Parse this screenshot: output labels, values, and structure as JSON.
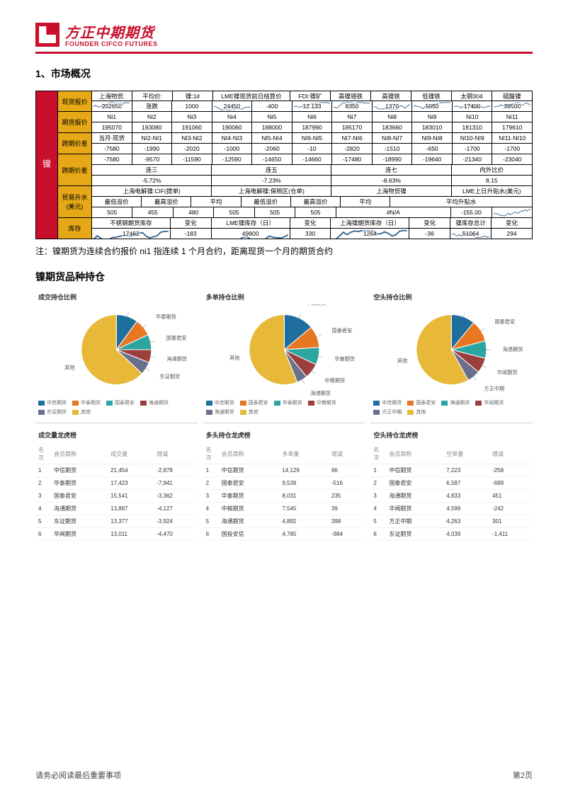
{
  "logo": {
    "cn": "方正中期期货",
    "en": "FOUNDER CIFCO FUTURES",
    "color": "#c8102e"
  },
  "section_title": "1、市场概况",
  "note": "注：镍期货为连续合约报价 ni1 指连续 1 个月合约，距离现货一个月的期货合约",
  "subtitle": "镍期货品种持仓",
  "big_table": {
    "left_label": "镍",
    "left_bg": "#c8102e",
    "mid_bg": "#e6a817",
    "groups": [
      {
        "mid": "现货报价",
        "rows": 2,
        "data": [
          [
            {
              "v": "上海物贸:",
              "span": 1
            },
            {
              "v": "平均价:",
              "span": 1
            },
            {
              "v": "镍:1#",
              "span": 1
            },
            {
              "v": "LME镍现货前日结算价",
              "span": 2
            },
            {
              "v": "FDI:镍矿",
              "span": 1
            },
            {
              "v": "高镍铬铁",
              "span": 1
            },
            {
              "v": "高镍铁",
              "span": 1
            },
            {
              "v": "低镍铁",
              "span": 1
            },
            {
              "v": "太钢304",
              "span": 1
            },
            {
              "v": "硫酸镍",
              "span": 1
            }
          ],
          [
            {
              "v": "202650",
              "spark": 1
            },
            {
              "v": "涨跌",
              "spark": 0
            },
            {
              "v": "1000",
              "spark": 0
            },
            {
              "v": "24450",
              "spark": 1
            },
            {
              "v": "-400",
              "spark": 0
            },
            {
              "v": "12.133",
              "spark": 1
            },
            {
              "v": "8350",
              "spark": 1
            },
            {
              "v": "1370",
              "spark": 1
            },
            {
              "v": "5050",
              "spark": 1
            },
            {
              "v": "17400",
              "spark": 1
            },
            {
              "v": "39500",
              "spark": 1
            }
          ]
        ]
      },
      {
        "mid": "期货报价",
        "rows": 2,
        "data": [
          [
            {
              "v": "Ni1"
            },
            {
              "v": "Ni2"
            },
            {
              "v": "Ni3"
            },
            {
              "v": "Ni4"
            },
            {
              "v": "Ni5"
            },
            {
              "v": "Ni6"
            },
            {
              "v": "Ni7"
            },
            {
              "v": "Ni8"
            },
            {
              "v": "Ni9"
            },
            {
              "v": "Ni10"
            },
            {
              "v": "Ni11"
            }
          ],
          [
            {
              "v": "195070"
            },
            {
              "v": "193080"
            },
            {
              "v": "191060"
            },
            {
              "v": "190060"
            },
            {
              "v": "188000"
            },
            {
              "v": "187990"
            },
            {
              "v": "185170"
            },
            {
              "v": "183660"
            },
            {
              "v": "183010"
            },
            {
              "v": "181310"
            },
            {
              "v": "179610"
            }
          ]
        ]
      },
      {
        "mid": "跨期价差",
        "rows": 2,
        "data": [
          [
            {
              "v": "当月-现货"
            },
            {
              "v": "NI2-NI1"
            },
            {
              "v": "NI3-NI2"
            },
            {
              "v": "NI4-NI3"
            },
            {
              "v": "NI5-NI4"
            },
            {
              "v": "NI6-NI5"
            },
            {
              "v": "NI7-NI6"
            },
            {
              "v": "NI8-NI7"
            },
            {
              "v": "NI9-NI8"
            },
            {
              "v": "NI10-NI9"
            },
            {
              "v": "NI11-NI10"
            }
          ],
          [
            {
              "v": "-7580"
            },
            {
              "v": "-1990"
            },
            {
              "v": "-2020"
            },
            {
              "v": "-1000"
            },
            {
              "v": "-2060"
            },
            {
              "v": "-10"
            },
            {
              "v": "-2820"
            },
            {
              "v": "-1510"
            },
            {
              "v": "-650"
            },
            {
              "v": "-1700"
            },
            {
              "v": "-1700"
            }
          ]
        ]
      },
      {
        "mid": "跨期价差",
        "rows": 3,
        "data": [
          [
            {
              "v": "-7580"
            },
            {
              "v": "-9570"
            },
            {
              "v": "-11590"
            },
            {
              "v": "-12590"
            },
            {
              "v": "-14650"
            },
            {
              "v": "-14660"
            },
            {
              "v": "-17480"
            },
            {
              "v": "-18990"
            },
            {
              "v": "-19640"
            },
            {
              "v": "-21340"
            },
            {
              "v": "-23040"
            }
          ],
          [
            {
              "v": "连三",
              "span": 3
            },
            {
              "v": "连五",
              "span": 3
            },
            {
              "v": "连七",
              "span": 3
            },
            {
              "v": "内外比价",
              "span": 2,
              "rowspan": 2
            }
          ],
          [
            {
              "v": "-5.72%",
              "span": 3
            },
            {
              "v": "-7.23%",
              "span": 3
            },
            {
              "v": "-8.63%",
              "span": 3
            },
            {
              "v": "8.15",
              "span": 2
            }
          ]
        ]
      },
      {
        "mid": "贸易升水(美元)",
        "rows": 3,
        "data": [
          [
            {
              "v": "上海电解镍:CIF(提单)",
              "span": 3
            },
            {
              "v": "上海电解镍:保税区(仓单)",
              "span": 3
            },
            {
              "v": "上海物贸镍",
              "span": 3
            },
            {
              "v": "LME上日升贴水(美元)",
              "span": 2,
              "rowspan": 2
            }
          ],
          [
            {
              "v": "最低溢价"
            },
            {
              "v": "最高溢价"
            },
            {
              "v": "平均"
            },
            {
              "v": "最低溢价"
            },
            {
              "v": "最高溢价"
            },
            {
              "v": "平均"
            },
            {
              "v": "平均升贴水",
              "span": 3
            }
          ],
          [
            {
              "v": "505"
            },
            {
              "v": "455"
            },
            {
              "v": "480"
            },
            {
              "v": "505"
            },
            {
              "v": "505"
            },
            {
              "v": "505"
            },
            {
              "v": "#N/A",
              "span": 3
            },
            {
              "v": "-155.00"
            },
            {
              "v": "",
              "spark": 1
            }
          ]
        ]
      },
      {
        "mid": "库存",
        "rows": 2,
        "data": [
          [
            {
              "v": "不锈钢期货库存",
              "span": 2
            },
            {
              "v": "变化"
            },
            {
              "v": "LME镍库存（日）",
              "span": 2
            },
            {
              "v": "变化"
            },
            {
              "v": "上海镍期货库存（日）",
              "span": 2
            },
            {
              "v": "变化"
            },
            {
              "v": "镍库存总计"
            },
            {
              "v": "变化"
            }
          ],
          [
            {
              "v": "17462",
              "span": 2,
              "spark": 1
            },
            {
              "v": "-183"
            },
            {
              "v": "49800",
              "span": 2,
              "spark": 1
            },
            {
              "v": "330"
            },
            {
              "v": "1264",
              "span": 2,
              "spark": 1
            },
            {
              "v": "-36"
            },
            {
              "v": "51064",
              "spark": 1
            },
            {
              "v": "294"
            }
          ]
        ]
      }
    ]
  },
  "pie_colors": {
    "中信期货": "#1f6f9e",
    "华泰期货": "#e87722",
    "国泰君安": "#2aa5a0",
    "海通期货": "#9c3e3e",
    "东证期货": "#6a6f8c",
    "华闻期货": "#c94f4f",
    "方正中期": "#7a8fa6",
    "中粮期货": "#b84c4c",
    "其他": "#e8b838"
  },
  "pies": [
    {
      "title": "成交持仓比例",
      "slices": [
        {
          "name": "中信期货",
          "pct": 10,
          "color": "#1f6f9e"
        },
        {
          "name": "华泰期货",
          "pct": 8,
          "color": "#e87722"
        },
        {
          "name": "国泰君安",
          "pct": 7,
          "color": "#2aa5a0"
        },
        {
          "name": "海通期货",
          "pct": 6,
          "color": "#9c3e3e"
        },
        {
          "name": "东证期货",
          "pct": 6,
          "color": "#6a6f8c"
        },
        {
          "name": "其他",
          "pct": 63,
          "color": "#e8b838"
        }
      ],
      "legend": [
        "中信期货",
        "华泰期货",
        "国泰君安",
        "海通期货",
        "东证期货",
        "其他"
      ]
    },
    {
      "title": "多单持仓比例",
      "slices": [
        {
          "name": "中信期货",
          "pct": 14,
          "color": "#1f6f9e"
        },
        {
          "name": "国泰君安",
          "pct": 10,
          "color": "#e87722"
        },
        {
          "name": "华泰期货",
          "pct": 8,
          "color": "#2aa5a0"
        },
        {
          "name": "中粮期货",
          "pct": 7,
          "color": "#9c3e3e"
        },
        {
          "name": "海通期货",
          "pct": 5,
          "color": "#6a6f8c"
        },
        {
          "name": "其他",
          "pct": 56,
          "color": "#e8b838"
        }
      ],
      "legend": [
        "中信期货",
        "国泰君安",
        "华泰期货",
        "中粮期货",
        "海通期货",
        "其他"
      ]
    },
    {
      "title": "空头持仓比例",
      "slices": [
        {
          "name": "中信期货",
          "pct": 11,
          "color": "#1f6f9e"
        },
        {
          "name": "国泰君安",
          "pct": 10,
          "color": "#e87722"
        },
        {
          "name": "海通期货",
          "pct": 8,
          "color": "#2aa5a0"
        },
        {
          "name": "华闻期货",
          "pct": 7,
          "color": "#9c3e3e"
        },
        {
          "name": "方正中期",
          "pct": 6,
          "color": "#6a6f8c"
        },
        {
          "name": "其他",
          "pct": 58,
          "color": "#e8b838"
        }
      ],
      "legend": [
        "中信期货",
        "国泰君安",
        "海通期货",
        "华闻期货",
        "方正中期",
        "其他"
      ]
    }
  ],
  "rank_tables": [
    {
      "title": "成交量龙虎榜",
      "cols": [
        "名次",
        "会员简称",
        "成交量",
        "增减"
      ],
      "rows": [
        [
          "1",
          "中信期货",
          "21,454",
          "-2,878"
        ],
        [
          "2",
          "华泰期货",
          "17,423",
          "-7,941"
        ],
        [
          "3",
          "国泰君安",
          "15,541",
          "-3,362"
        ],
        [
          "4",
          "海通期货",
          "13,887",
          "-4,127"
        ],
        [
          "5",
          "东证期货",
          "13,377",
          "-3,924"
        ],
        [
          "6",
          "华闻期货",
          "13,011",
          "-4,470"
        ]
      ]
    },
    {
      "title": "多头持仓龙虎榜",
      "cols": [
        "名次",
        "会员简称",
        "多单量",
        "增减"
      ],
      "rows": [
        [
          "1",
          "中信期货",
          "14,129",
          "96"
        ],
        [
          "2",
          "国泰君安",
          "9,539",
          "-516"
        ],
        [
          "3",
          "华泰期货",
          "8,031",
          "235"
        ],
        [
          "4",
          "中粮期货",
          "7,545",
          "39"
        ],
        [
          "5",
          "海通期货",
          "4,892",
          "398"
        ],
        [
          "6",
          "国投安信",
          "4,785",
          "-984"
        ]
      ]
    },
    {
      "title": "空头持仓龙虎榜",
      "cols": [
        "名次",
        "会员简称",
        "空单量",
        "增减"
      ],
      "rows": [
        [
          "1",
          "中信期货",
          "7,223",
          "-258"
        ],
        [
          "2",
          "国泰君安",
          "6,587",
          "-699"
        ],
        [
          "3",
          "海通期货",
          "4,833",
          "451"
        ],
        [
          "4",
          "华闻期货",
          "4,599",
          "-242"
        ],
        [
          "5",
          "方正中期",
          "4,263",
          "301"
        ],
        [
          "6",
          "东证期货",
          "4,039",
          "-1,411"
        ]
      ]
    }
  ],
  "footer": {
    "left": "请务必阅读最后重要事项",
    "right": "第2页"
  }
}
